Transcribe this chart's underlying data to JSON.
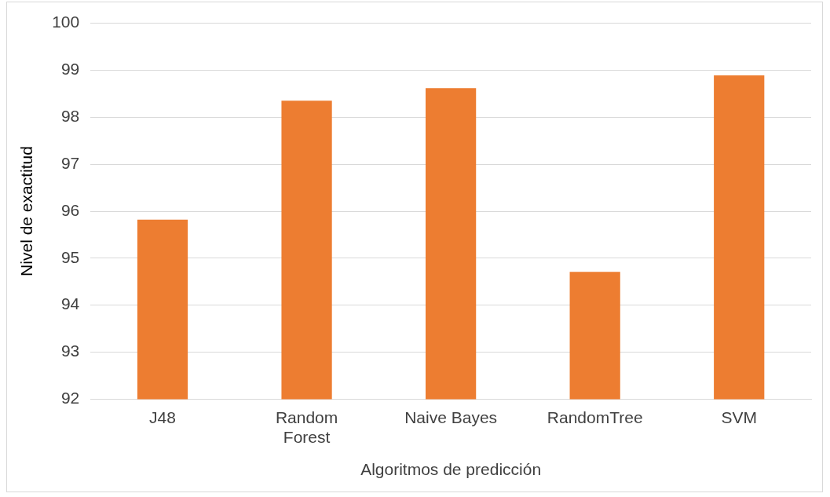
{
  "chart_data": {
    "type": "bar",
    "xlabel": "Algoritmos de predicción",
    "ylabel": "Nivel de exactitud",
    "categories": [
      "J48",
      "Random Forest",
      "Naive Bayes",
      "RandomTree",
      "SVM"
    ],
    "values": [
      95.82,
      98.35,
      98.62,
      94.71,
      98.89
    ],
    "color": "#ed7d31",
    "ylim": [
      92,
      100
    ],
    "yticks": [
      92,
      93,
      94,
      95,
      96,
      97,
      98,
      99,
      100
    ],
    "grid": "y"
  }
}
